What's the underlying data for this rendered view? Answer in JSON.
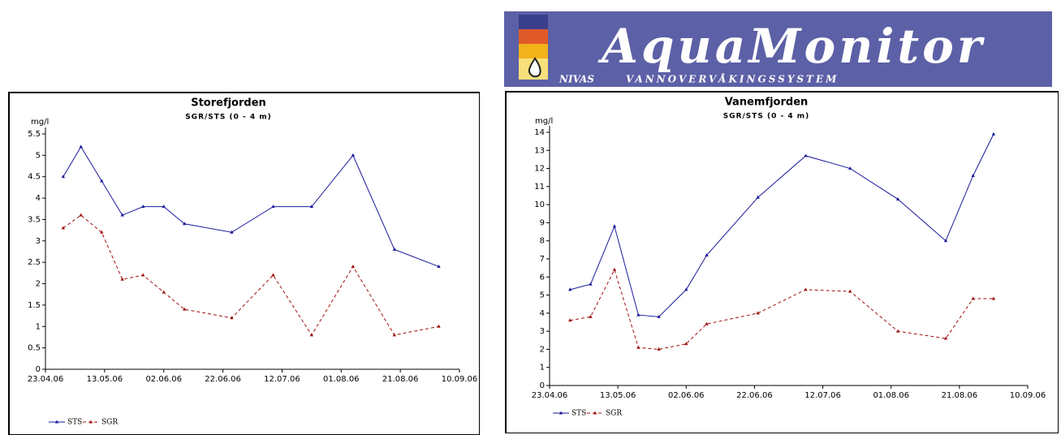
{
  "logo": {
    "title": "AquaMonitor",
    "tagline_left": "NIVAS",
    "tagline_right": "VANNOVERVÅKINGSSYSTEM"
  },
  "chart_data": [
    {
      "type": "line",
      "title": "Storefjorden",
      "subtitle": "SGR/STS (0 - 4 m)",
      "y_label": "mg/l",
      "x": [
        "2006-04-29",
        "2006-05-05",
        "2006-05-12",
        "2006-05-19",
        "2006-05-26",
        "2006-06-02",
        "2006-06-09",
        "2006-06-25",
        "2006-07-09",
        "2006-07-22",
        "2006-08-05",
        "2006-08-19",
        "2006-09-03"
      ],
      "series": [
        {
          "name": "STS",
          "color": "#1a1a9c",
          "line_style": "solid",
          "values": [
            4.5,
            5.2,
            4.4,
            3.6,
            3.8,
            3.8,
            3.4,
            3.2,
            3.8,
            3.8,
            5.0,
            2.8,
            2.4
          ]
        },
        {
          "name": "SGR",
          "color": "#a01010",
          "line_style": "dashed",
          "values": [
            3.3,
            3.6,
            3.2,
            2.1,
            2.2,
            1.8,
            1.4,
            1.2,
            2.2,
            0.8,
            2.4,
            0.8,
            1.0
          ]
        }
      ],
      "xlim": [
        "2006-04-23",
        "2006-09-10"
      ],
      "xticks": [
        {
          "value": "2006-04-23",
          "label": "23.04.06"
        },
        {
          "value": "2006-05-13",
          "label": "13.05.06"
        },
        {
          "value": "2006-06-02",
          "label": "02.06.06"
        },
        {
          "value": "2006-06-22",
          "label": "22.06.06"
        },
        {
          "value": "2006-07-12",
          "label": "12.07.06"
        },
        {
          "value": "2006-08-01",
          "label": "01.08.06"
        },
        {
          "value": "2006-08-21",
          "label": "21.08.06"
        },
        {
          "value": "2006-09-10",
          "label": "10.09.06"
        }
      ],
      "ylim": [
        0,
        5.5
      ],
      "yticks": [
        0,
        0.5,
        1,
        1.5,
        2,
        2.5,
        3,
        3.5,
        4,
        4.5,
        5,
        5.5
      ],
      "legend": "bottom-left"
    },
    {
      "type": "line",
      "title": "Vanemfjorden",
      "subtitle": "SGR/STS (0 - 4 m)",
      "y_label": "mg/l",
      "x": [
        "2006-04-29",
        "2006-05-05",
        "2006-05-12",
        "2006-05-19",
        "2006-05-25",
        "2006-06-02",
        "2006-06-08",
        "2006-06-23",
        "2006-07-07",
        "2006-07-20",
        "2006-08-03",
        "2006-08-17",
        "2006-08-25",
        "2006-08-31"
      ],
      "series": [
        {
          "name": "STS",
          "color": "#1a1a9c",
          "line_style": "solid",
          "values": [
            5.3,
            5.6,
            8.8,
            3.9,
            3.8,
            5.3,
            7.2,
            10.4,
            12.7,
            12.0,
            10.3,
            8.0,
            11.6,
            13.9
          ]
        },
        {
          "name": "SGR",
          "color": "#a01010",
          "line_style": "dashed",
          "values": [
            3.6,
            3.8,
            6.4,
            2.1,
            2.0,
            2.3,
            3.4,
            4.0,
            5.3,
            5.2,
            3.0,
            2.6,
            4.8,
            4.8
          ]
        }
      ],
      "xlim": [
        "2006-04-23",
        "2006-09-10"
      ],
      "xticks": [
        {
          "value": "2006-04-23",
          "label": "23.04.06"
        },
        {
          "value": "2006-05-13",
          "label": "13.05.06"
        },
        {
          "value": "2006-06-02",
          "label": "02.06.06"
        },
        {
          "value": "2006-06-22",
          "label": "22.06.06"
        },
        {
          "value": "2006-07-12",
          "label": "12.07.06"
        },
        {
          "value": "2006-08-01",
          "label": "01.08.06"
        },
        {
          "value": "2006-08-21",
          "label": "21.08.06"
        },
        {
          "value": "2006-09-10",
          "label": "10.09.06"
        }
      ],
      "ylim": [
        0,
        14
      ],
      "yticks": [
        0,
        1,
        2,
        3,
        4,
        5,
        6,
        7,
        8,
        9,
        10,
        11,
        12,
        13,
        14
      ],
      "legend": "bottom-left"
    }
  ]
}
